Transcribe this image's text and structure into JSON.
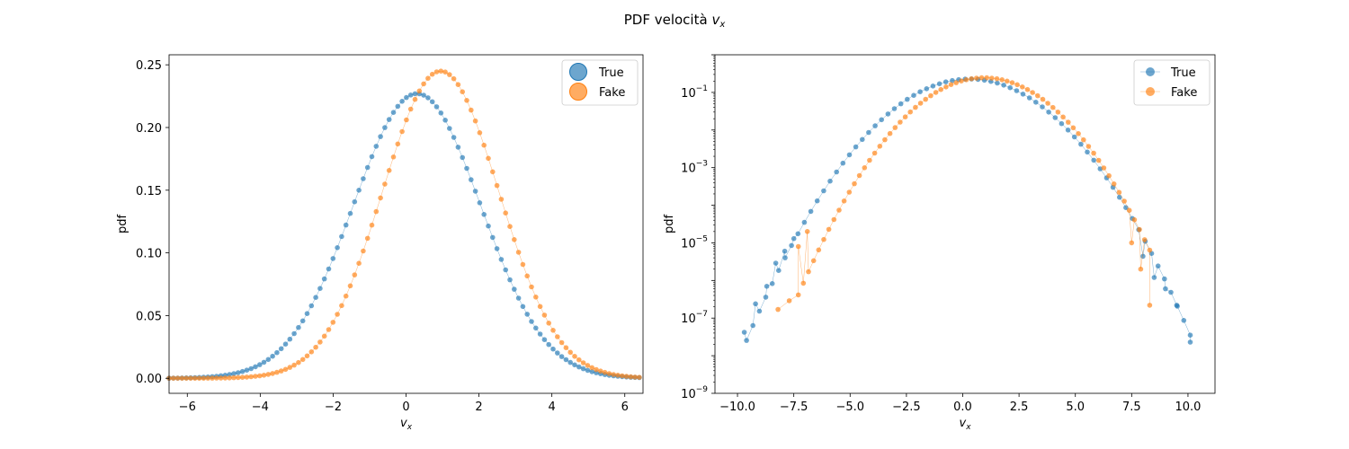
{
  "figure": {
    "title_prefix": "PDF velocità ",
    "title_var": "v",
    "title_sub": "x"
  },
  "chart_data": [
    {
      "type": "scatter",
      "panel": "linear",
      "xlabel_var": "v",
      "xlabel_sub": "x",
      "ylabel": "pdf",
      "xlim": [
        -6.5,
        6.5
      ],
      "ylim": [
        -0.012,
        0.258
      ],
      "yscale": "linear",
      "xticks": [
        -6,
        -4,
        -2,
        0,
        2,
        4,
        6
      ],
      "xtick_labels": [
        "−6",
        "−4",
        "−2",
        "0",
        "2",
        "4",
        "6"
      ],
      "yticks": [
        0.0,
        0.05,
        0.1,
        0.15,
        0.2,
        0.25
      ],
      "ytick_labels": [
        "0.00",
        "0.05",
        "0.10",
        "0.15",
        "0.20",
        "0.25"
      ],
      "grid": false,
      "legend_position": "top-right",
      "series": [
        {
          "name": "True",
          "distribution": "gaussian",
          "peak": 0.227,
          "mean": 0.3,
          "sd": 1.75,
          "x_from": -6.5,
          "x_to": 6.4,
          "n_points": 110,
          "color": "#1f77b4"
        },
        {
          "name": "Fake",
          "distribution": "gaussian",
          "peak": 0.245,
          "mean": 0.95,
          "sd": 1.6,
          "x_from": -6.5,
          "x_to": 6.4,
          "n_points": 110,
          "color": "#ff7f0e"
        }
      ]
    },
    {
      "type": "line",
      "panel": "log",
      "xlabel_var": "v",
      "xlabel_sub": "x",
      "ylabel": "pdf",
      "xlim": [
        -11.0,
        11.2
      ],
      "ylim_log10": [
        -9,
        0
      ],
      "yscale": "log",
      "xticks": [
        -10,
        -7.5,
        -5,
        -2.5,
        0,
        2.5,
        5,
        7.5,
        10
      ],
      "xtick_labels": [
        "−10.0",
        "−7.5",
        "−5.0",
        "−2.5",
        "0.0",
        "2.5",
        "5.0",
        "7.5",
        "10.0"
      ],
      "yticks_log10": [
        -9,
        -7,
        -5,
        -3,
        -1
      ],
      "ytick_base": "10",
      "ytick_exponents": [
        "−9",
        "−7",
        "−5",
        "−3",
        "−1"
      ],
      "grid": false,
      "legend_position": "top-right",
      "series": [
        {
          "name": "True",
          "distribution": "gaussian",
          "peak": 0.227,
          "mean": 0.3,
          "sd": 1.75,
          "x_from": -9.6,
          "x_to": 10.1,
          "n_points": 70,
          "color": "#1f77b4",
          "tail_points": [
            [
              -9.7,
              4.2e-08
            ],
            [
              -9.2,
              2.4e-07
            ],
            [
              -8.7,
              7e-07
            ],
            [
              -8.3,
              2.9e-06
            ],
            [
              -7.9,
              6e-06
            ],
            [
              -7.5,
              1.3e-05
            ],
            [
              8.0,
              4.4e-06
            ],
            [
              8.5,
              1.2e-06
            ],
            [
              9.0,
              6e-07
            ],
            [
              9.5,
              2.2e-07
            ],
            [
              10.1,
              2.3e-08
            ]
          ]
        },
        {
          "name": "Fake",
          "distribution": "gaussian",
          "peak": 0.245,
          "mean": 0.95,
          "sd": 1.6,
          "x_from": -7.3,
          "x_to": 8.3,
          "n_points": 70,
          "color": "#ff7f0e",
          "tail_points": [
            [
              -8.2,
              1.7e-07
            ],
            [
              -7.7,
              2.9e-07
            ],
            [
              -7.3,
              8e-06
            ],
            [
              -6.9,
              2e-05
            ],
            [
              7.5,
              1e-05
            ],
            [
              7.9,
              2e-06
            ],
            [
              8.3,
              2.2e-07
            ]
          ]
        }
      ]
    }
  ]
}
